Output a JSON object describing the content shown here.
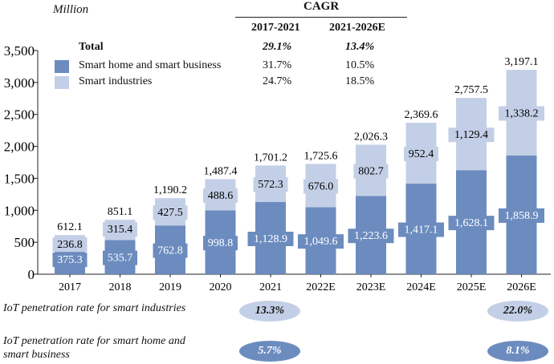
{
  "unit_label": "Million",
  "cagr": {
    "title": "CAGR",
    "columns": [
      "2017-2021",
      "2021-2026E"
    ],
    "rows": [
      {
        "label": "Total",
        "values": [
          "29.1%",
          "13.4%"
        ],
        "bold": true
      },
      {
        "label": "Smart home and smart business",
        "values": [
          "31.7%",
          "10.5%"
        ],
        "color": "#6c8cbf"
      },
      {
        "label": "Smart industries",
        "values": [
          "24.7%",
          "18.5%"
        ],
        "color": "#c3cfe6"
      }
    ]
  },
  "penetration": {
    "industries_label": "IoT penetration rate for smart industries",
    "home_label_line1": "IoT penetration rate for smart home and",
    "home_label_line2": "smart business",
    "industries_2021": "13.3%",
    "industries_2026": "22.0%",
    "home_2021": "5.7%",
    "home_2026": "8.1%",
    "light_color": "#c3cfe6",
    "dark_color": "#6c8cbf"
  },
  "chart_data": {
    "type": "bar",
    "stacked": true,
    "ylabel": "Million",
    "ylim": [
      0,
      3500
    ],
    "yticks": [
      0,
      500,
      1000,
      1500,
      2000,
      2500,
      3000,
      3500
    ],
    "ytick_labels": [
      "0",
      "500",
      "1,000",
      "1,500",
      "2,000",
      "2,500",
      "3,000",
      "3,500"
    ],
    "categories": [
      "2017",
      "2018",
      "2019",
      "2020",
      "2021",
      "2022E",
      "2023E",
      "2024E",
      "2025E",
      "2026E"
    ],
    "series": [
      {
        "name": "Smart home and smart business",
        "color": "#6c8cbf",
        "values": [
          375.3,
          535.7,
          762.8,
          998.8,
          1128.9,
          1049.6,
          1223.6,
          1417.1,
          1628.1,
          1858.9
        ],
        "labels": [
          "375.3",
          "535.7",
          "762.8",
          "998.8",
          "1,128.9",
          "1,049.6",
          "1,223.6",
          "1,417.1",
          "1,628.1",
          "1,858.9"
        ]
      },
      {
        "name": "Smart industries",
        "color": "#c3cfe6",
        "values": [
          236.8,
          315.4,
          427.5,
          488.6,
          572.3,
          676.0,
          802.7,
          952.4,
          1129.4,
          1338.2
        ],
        "labels": [
          "236.8",
          "315.4",
          "427.5",
          "488.6",
          "572.3",
          "676.0",
          "802.7",
          "952.4",
          "1,129.4",
          "1,338.2"
        ]
      }
    ],
    "totals": [
      612.1,
      851.1,
      1190.2,
      1487.4,
      1701.2,
      1725.6,
      2026.3,
      2369.6,
      2757.5,
      3197.1
    ],
    "total_labels": [
      "612.1",
      "851.1",
      "1,190.2",
      "1,487.4",
      "1,701.2",
      "1,725.6",
      "2,026.3",
      "2,369.6",
      "2,757.5",
      "3,197.1"
    ]
  }
}
